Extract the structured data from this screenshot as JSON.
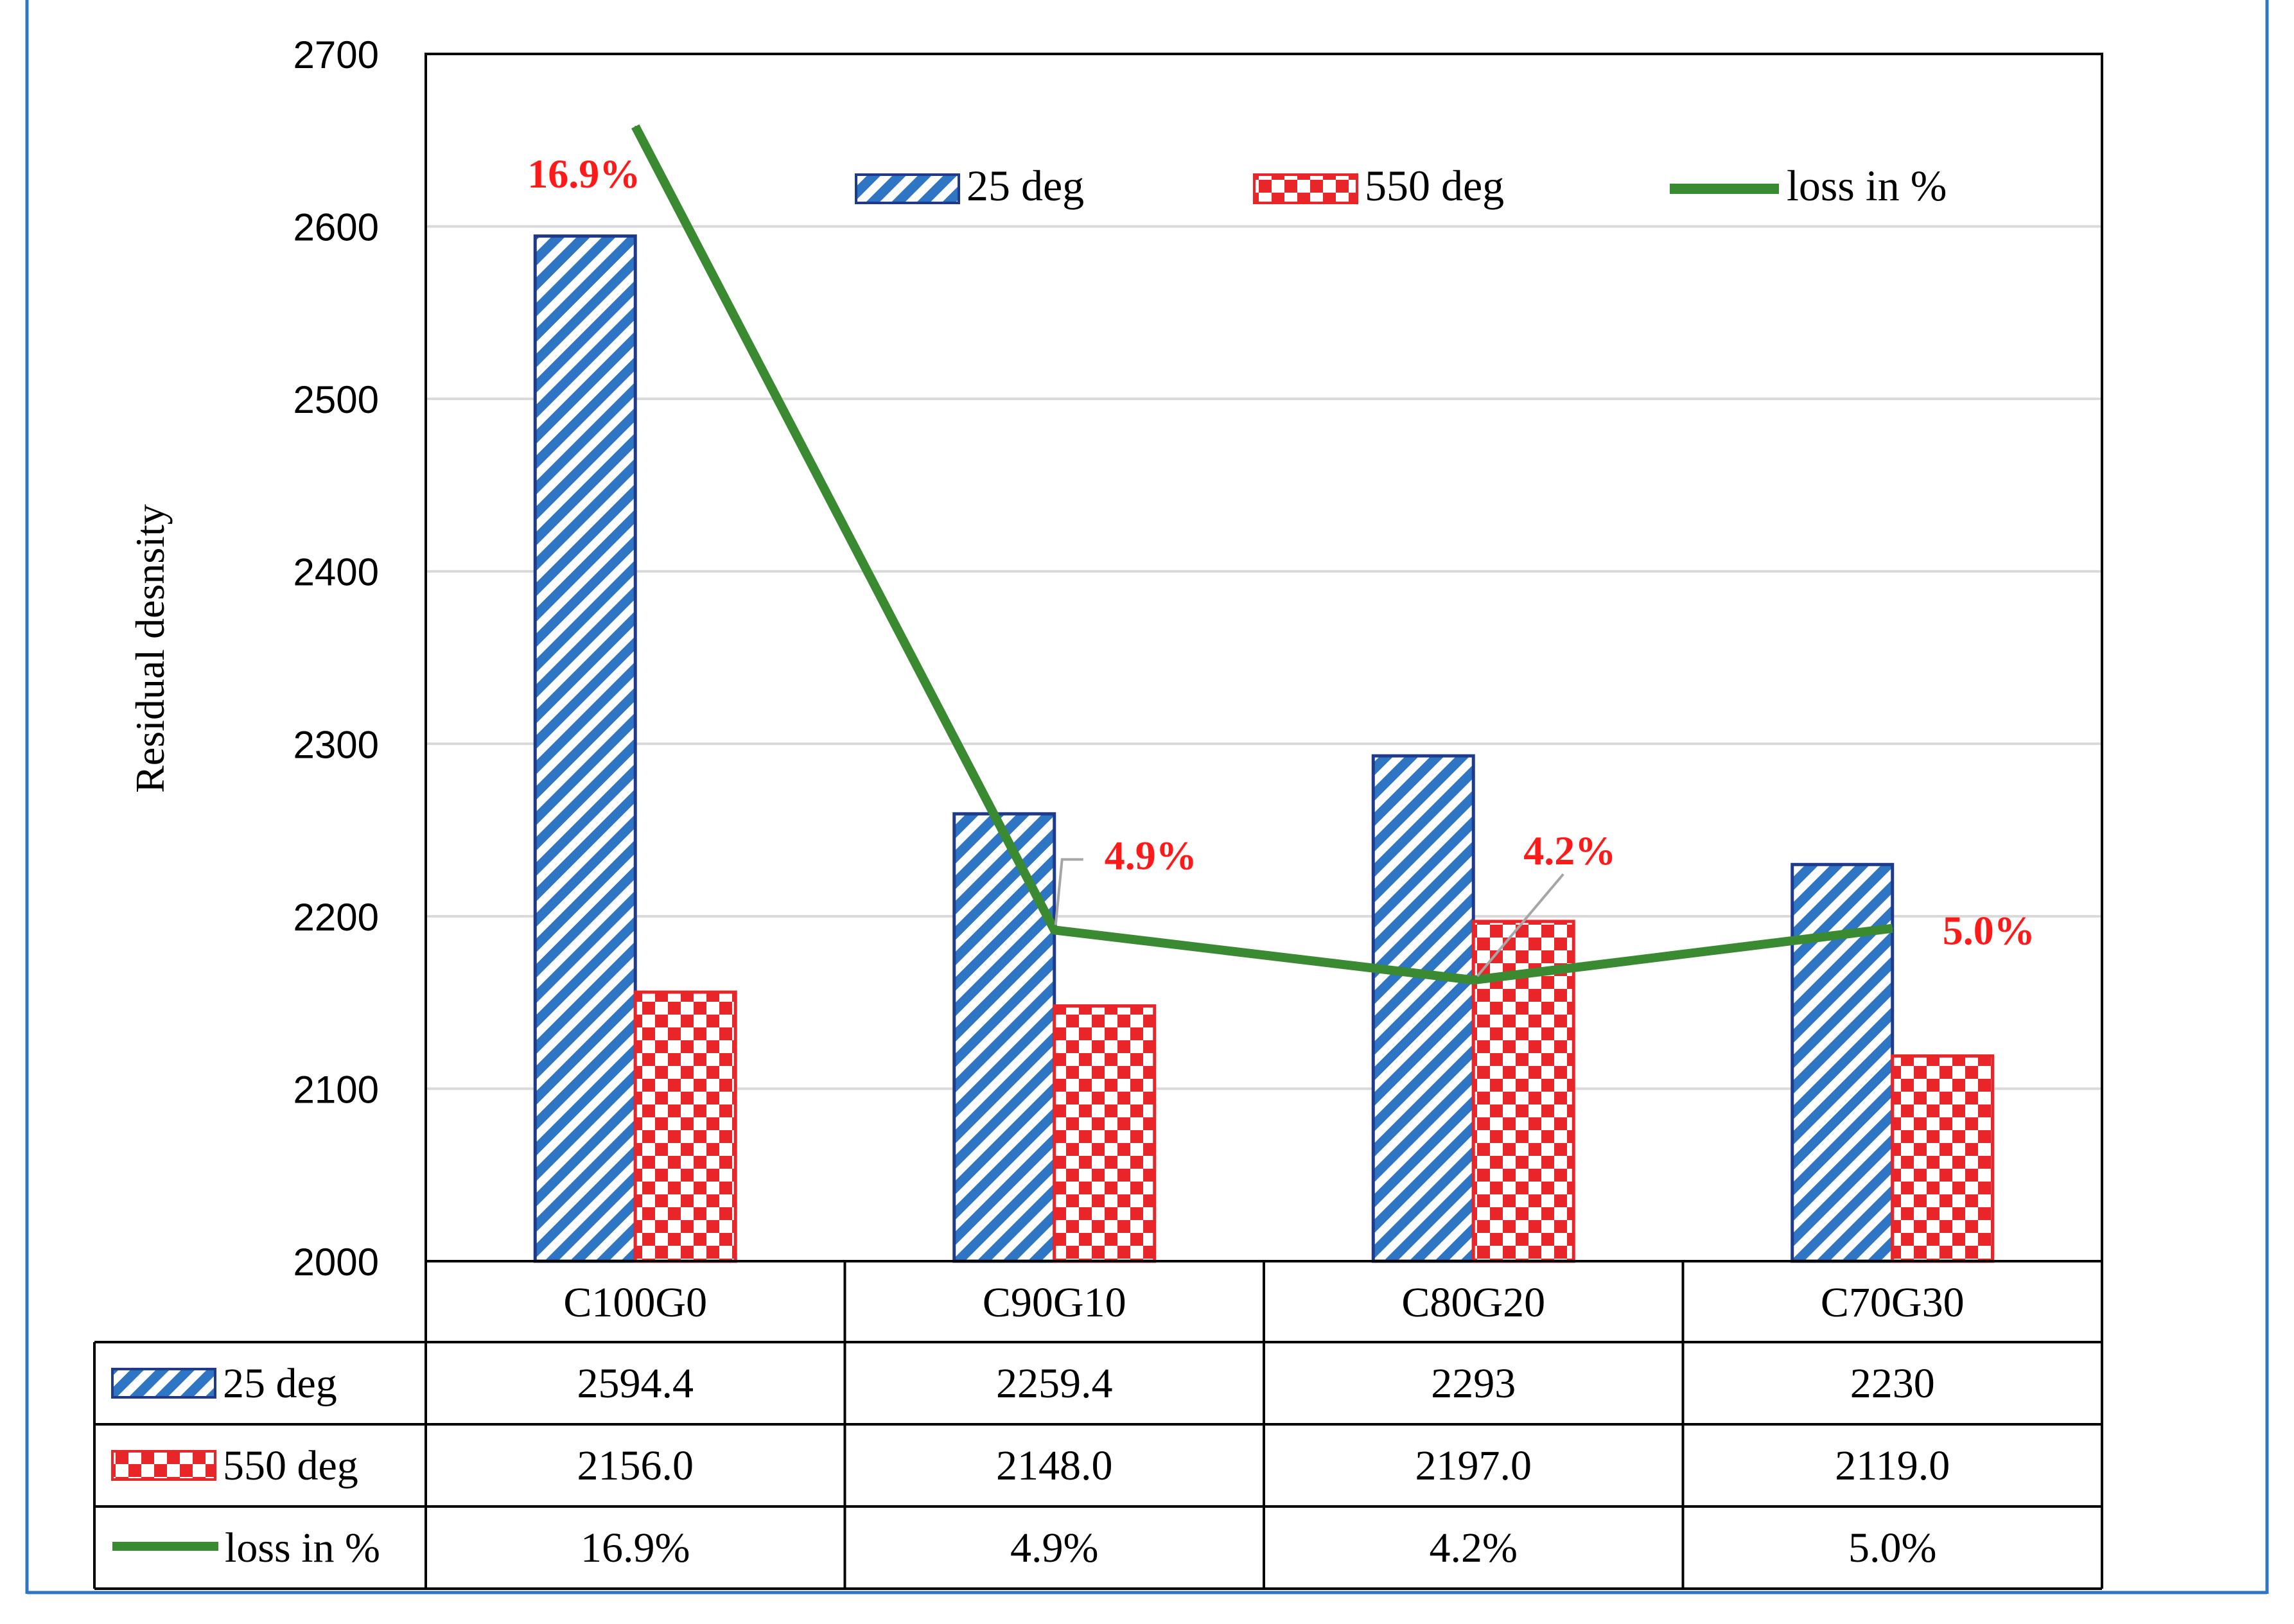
{
  "chart_data": {
    "type": "bar",
    "title": "",
    "xlabel": "",
    "ylabel": "Residual desnsity",
    "ylim": [
      2000,
      2700
    ],
    "yticks": [
      2000,
      2100,
      2200,
      2300,
      2400,
      2500,
      2600,
      2700
    ],
    "grid": true,
    "legend_position": "top",
    "categories": [
      "C100G0",
      "C90G10",
      "C80G20",
      "C70G30"
    ],
    "series": [
      {
        "name": "25 deg",
        "kind": "bar",
        "pattern": "diagonal-stripes",
        "color": "#2E75C4",
        "border_color": "#1F3A8A",
        "values": [
          2594.4,
          2259.4,
          2293,
          2230
        ],
        "table_values": [
          "2594.4",
          "2259.4",
          "2293",
          "2230"
        ]
      },
      {
        "name": "550 deg",
        "kind": "bar",
        "pattern": "checkerboard",
        "color": "#E8262A",
        "border_color": "#E8262A",
        "values": [
          2156.0,
          2148.0,
          2197.0,
          2119.0
        ],
        "table_values": [
          "2156.0",
          "2148.0",
          "2197.0",
          "2119.0"
        ]
      },
      {
        "name": "loss in %",
        "kind": "line",
        "color": "#3A8A32",
        "values": [
          16.9,
          4.9,
          4.2,
          5.0
        ],
        "plotted_at": [
          2658,
          2192,
          2163,
          2193
        ],
        "table_values": [
          "16.9%",
          "4.9%",
          "4.2%",
          "5.0%"
        ],
        "data_labels": [
          "16.9%",
          "4.9%",
          "4.2%",
          "5.0%"
        ]
      }
    ],
    "data_label_color": "#FF1A1A",
    "gridline_color": "#D9D9D9",
    "frame_color": "#2E75C4"
  }
}
